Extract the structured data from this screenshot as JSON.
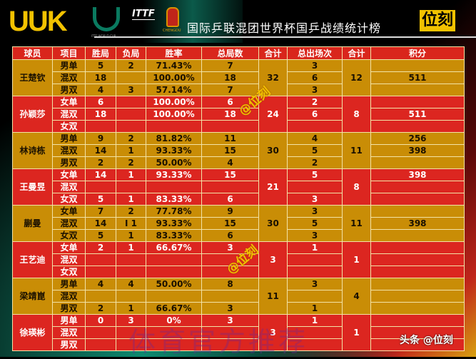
{
  "header": {
    "logo": "UUK",
    "world_cup_logo": "ITTF WORLD CUP",
    "ittf_logo": "ITTF",
    "city_logo": "CHENGDU",
    "title": "国际乒联混团世界杯国乒战绩统计榜",
    "brand": "位刻"
  },
  "columns": [
    "球员",
    "项目",
    "胜局",
    "负局",
    "胜率",
    "总局数",
    "合计",
    "总出场次",
    "合计",
    "积分"
  ],
  "colors": {
    "gold": "#c98d06",
    "red": "#dc2620",
    "header": "#d9261c",
    "brand": "#f2c200"
  },
  "players": [
    {
      "name": "王楚钦",
      "games_total": "32",
      "matches_total": "12",
      "theme": "g",
      "rows": [
        {
          "event": "男单",
          "won": "5",
          "lost": "2",
          "rate": "71.43%",
          "games": "7",
          "matches": "3",
          "points": ""
        },
        {
          "event": "混双",
          "won": "18",
          "lost": "",
          "rate": "100.00%",
          "games": "18",
          "matches": "6",
          "points": "511"
        },
        {
          "event": "男双",
          "won": "4",
          "lost": "3",
          "rate": "57.14%",
          "games": "7",
          "matches": "3",
          "points": ""
        }
      ]
    },
    {
      "name": "孙颖莎",
      "games_total": "24",
      "matches_total": "8",
      "theme": "r",
      "rows": [
        {
          "event": "女单",
          "won": "6",
          "lost": "",
          "rate": "100.00%",
          "games": "6",
          "matches": "2",
          "points": ""
        },
        {
          "event": "混双",
          "won": "18",
          "lost": "",
          "rate": "100.00%",
          "games": "18",
          "matches": "6",
          "points": "511"
        },
        {
          "event": "女双",
          "won": "",
          "lost": "",
          "rate": "",
          "games": "",
          "matches": "",
          "points": ""
        }
      ]
    },
    {
      "name": "林诗栋",
      "games_total": "30",
      "matches_total": "11",
      "theme": "g",
      "rows": [
        {
          "event": "男单",
          "won": "9",
          "lost": "2",
          "rate": "81.82%",
          "games": "11",
          "matches": "4",
          "points": "256"
        },
        {
          "event": "混双",
          "won": "14",
          "lost": "1",
          "rate": "93.33%",
          "games": "15",
          "matches": "5",
          "points": "398"
        },
        {
          "event": "男双",
          "won": "2",
          "lost": "2",
          "rate": "50.00%",
          "games": "4",
          "matches": "2",
          "points": ""
        }
      ]
    },
    {
      "name": "王曼昱",
      "games_total": "21",
      "matches_total": "8",
      "theme": "r",
      "rows": [
        {
          "event": "女单",
          "won": "14",
          "lost": "1",
          "rate": "93.33%",
          "games": "15",
          "matches": "5",
          "points": "398"
        },
        {
          "event": "混双",
          "won": "",
          "lost": "",
          "rate": "",
          "games": "",
          "matches": "",
          "points": ""
        },
        {
          "event": "女双",
          "won": "5",
          "lost": "1",
          "rate": "83.33%",
          "games": "6",
          "matches": "3",
          "points": ""
        }
      ]
    },
    {
      "name": "蒯曼",
      "games_total": "30",
      "matches_total": "11",
      "theme": "g",
      "rows": [
        {
          "event": "女单",
          "won": "7",
          "lost": "2",
          "rate": "77.78%",
          "games": "9",
          "matches": "3",
          "points": ""
        },
        {
          "event": "混双",
          "won": "14",
          "lost": "I 1",
          "rate": "93.33%",
          "games": "15",
          "matches": "5",
          "points": "398"
        },
        {
          "event": "女双",
          "won": "5",
          "lost": "1",
          "rate": "83.33%",
          "games": "6",
          "matches": "3",
          "points": ""
        }
      ]
    },
    {
      "name": "王艺迪",
      "games_total": "3",
      "matches_total": "1",
      "theme": "r",
      "rows": [
        {
          "event": "女单",
          "won": "2",
          "lost": "1",
          "rate": "66.67%",
          "games": "3",
          "matches": "1",
          "points": ""
        },
        {
          "event": "混双",
          "won": "",
          "lost": "",
          "rate": "",
          "games": "",
          "matches": "",
          "points": ""
        },
        {
          "event": "女双",
          "won": "",
          "lost": "",
          "rate": "",
          "games": "",
          "matches": "",
          "points": ""
        }
      ]
    },
    {
      "name": "梁靖崑",
      "games_total": "11",
      "matches_total": "4",
      "theme": "g",
      "rows": [
        {
          "event": "男单",
          "won": "4",
          "lost": "4",
          "rate": "50.00%",
          "games": "8",
          "matches": "3",
          "points": ""
        },
        {
          "event": "混双",
          "won": "",
          "lost": "",
          "rate": "",
          "games": "",
          "matches": "",
          "points": ""
        },
        {
          "event": "男双",
          "won": "2",
          "lost": "1",
          "rate": "66.67%",
          "games": "3",
          "matches": "1",
          "points": ""
        }
      ]
    },
    {
      "name": "徐瑛彬",
      "games_total": "3",
      "matches_total": "1",
      "theme": "r",
      "rows": [
        {
          "event": "男单",
          "won": "0",
          "lost": "3",
          "rate": "0%",
          "games": "3",
          "matches": "1",
          "points": ""
        },
        {
          "event": "混双",
          "won": "",
          "lost": "",
          "rate": "",
          "games": "",
          "matches": "",
          "points": ""
        },
        {
          "event": "男双",
          "won": "",
          "lost": "",
          "rate": "",
          "games": "",
          "matches": "",
          "points": ""
        }
      ]
    }
  ],
  "watermarks": {
    "handle": "@位刻",
    "faint": "体育官方推荐",
    "footer": "头条 @位刻"
  }
}
